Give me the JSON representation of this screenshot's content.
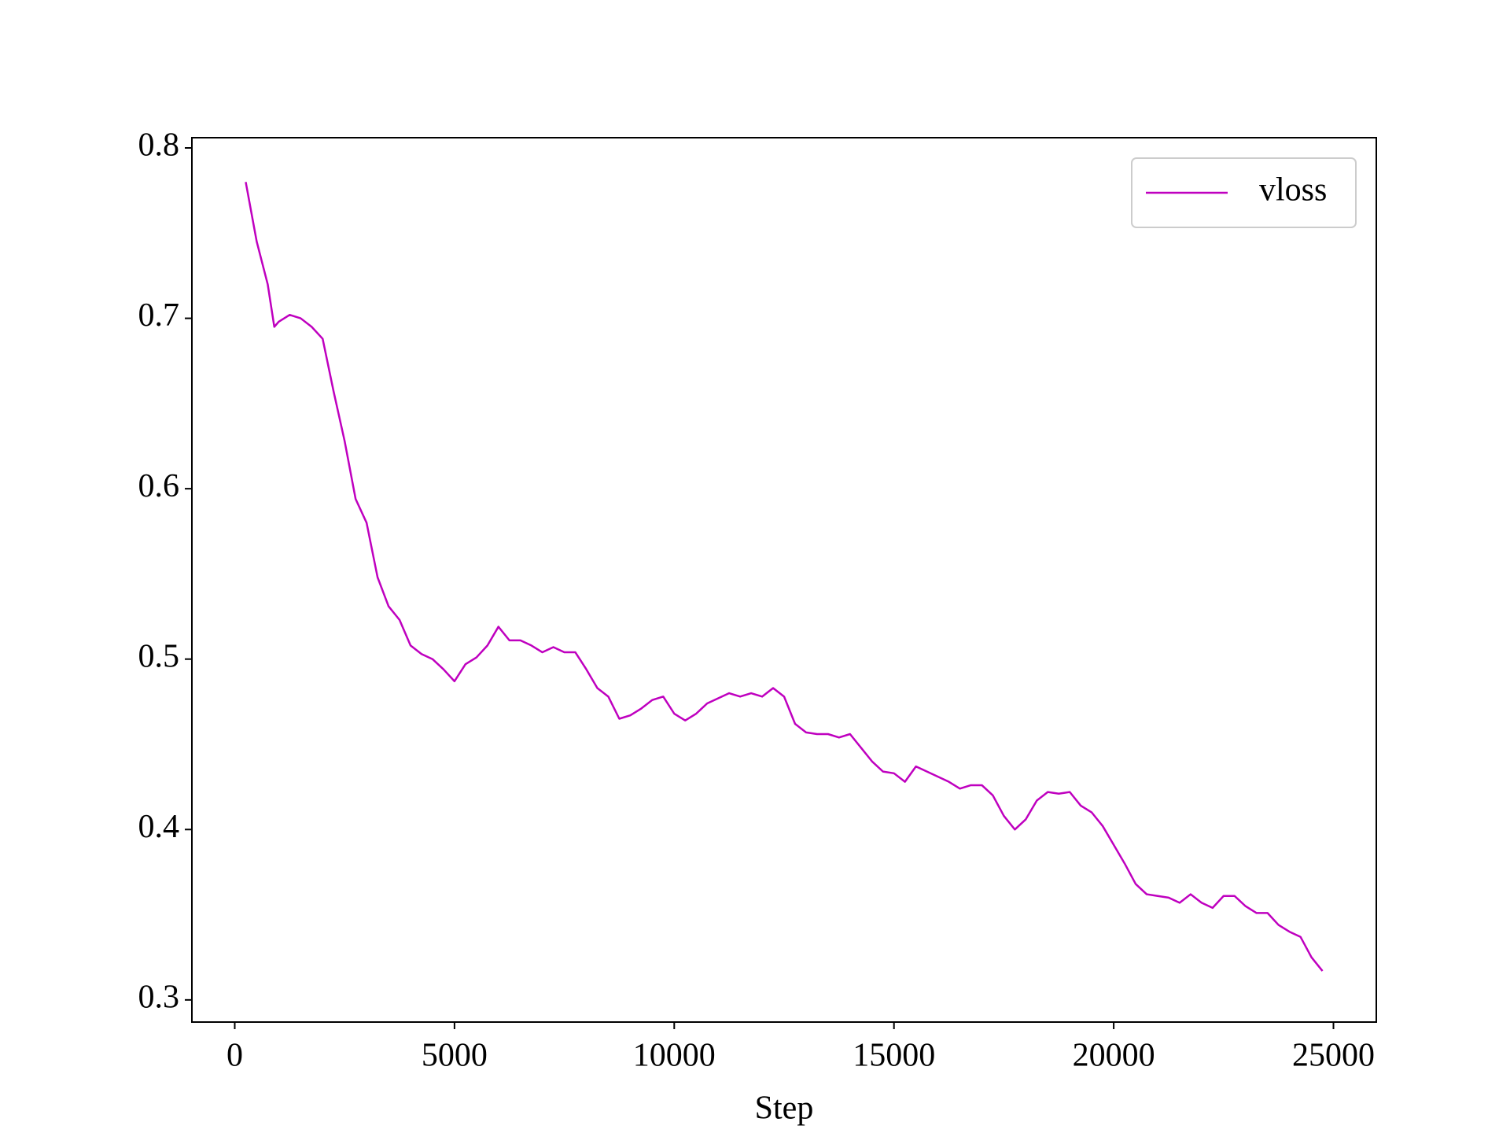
{
  "chart_data": {
    "type": "line",
    "xlabel": "Step",
    "x": [
      250,
      500,
      750,
      900,
      1000,
      1250,
      1500,
      1750,
      2000,
      2250,
      2500,
      2750,
      3000,
      3250,
      3500,
      3750,
      4000,
      4250,
      4500,
      4750,
      5000,
      5250,
      5500,
      5750,
      6000,
      6250,
      6500,
      6750,
      7000,
      7250,
      7500,
      7750,
      8000,
      8250,
      8500,
      8750,
      9000,
      9250,
      9500,
      9750,
      10000,
      10250,
      10500,
      10750,
      11000,
      11250,
      11500,
      11750,
      12000,
      12250,
      12500,
      12750,
      13000,
      13250,
      13500,
      13750,
      14000,
      14250,
      14500,
      14750,
      15000,
      15250,
      15500,
      15750,
      16000,
      16250,
      16500,
      16750,
      17000,
      17250,
      17500,
      17750,
      18000,
      18250,
      18500,
      18750,
      19000,
      19250,
      19500,
      19750,
      20000,
      20250,
      20500,
      20750,
      21000,
      21250,
      21500,
      21750,
      22000,
      22250,
      22500,
      22750,
      23000,
      23250,
      23500,
      23750,
      24000,
      24250,
      24500,
      24750
    ],
    "series": [
      {
        "name": "vloss",
        "color": "#bf00bf",
        "values": [
          0.78,
          0.745,
          0.72,
          0.695,
          0.698,
          0.702,
          0.7,
          0.695,
          0.688,
          0.657,
          0.628,
          0.594,
          0.58,
          0.548,
          0.531,
          0.523,
          0.508,
          0.503,
          0.5,
          0.494,
          0.487,
          0.497,
          0.501,
          0.508,
          0.519,
          0.511,
          0.511,
          0.508,
          0.504,
          0.507,
          0.504,
          0.504,
          0.494,
          0.483,
          0.478,
          0.465,
          0.467,
          0.471,
          0.476,
          0.478,
          0.468,
          0.464,
          0.468,
          0.474,
          0.477,
          0.48,
          0.478,
          0.48,
          0.478,
          0.483,
          0.478,
          0.462,
          0.457,
          0.456,
          0.456,
          0.454,
          0.456,
          0.448,
          0.44,
          0.434,
          0.433,
          0.428,
          0.437,
          0.434,
          0.431,
          0.428,
          0.424,
          0.426,
          0.426,
          0.42,
          0.408,
          0.4,
          0.406,
          0.417,
          0.422,
          0.421,
          0.422,
          0.414,
          0.41,
          0.402,
          0.391,
          0.38,
          0.368,
          0.362,
          0.361,
          0.36,
          0.357,
          0.362,
          0.357,
          0.354,
          0.361,
          0.361,
          0.355,
          0.351,
          0.351,
          0.344,
          0.34,
          0.337,
          0.325,
          0.317
        ]
      }
    ],
    "xlim": [
      -975,
      25975
    ],
    "ylim": [
      0.287,
      0.806
    ],
    "xticks": [
      0,
      5000,
      10000,
      15000,
      20000,
      25000
    ],
    "yticks": [
      0.3,
      0.4,
      0.5,
      0.6,
      0.7,
      0.8
    ],
    "legend": "upper right"
  }
}
